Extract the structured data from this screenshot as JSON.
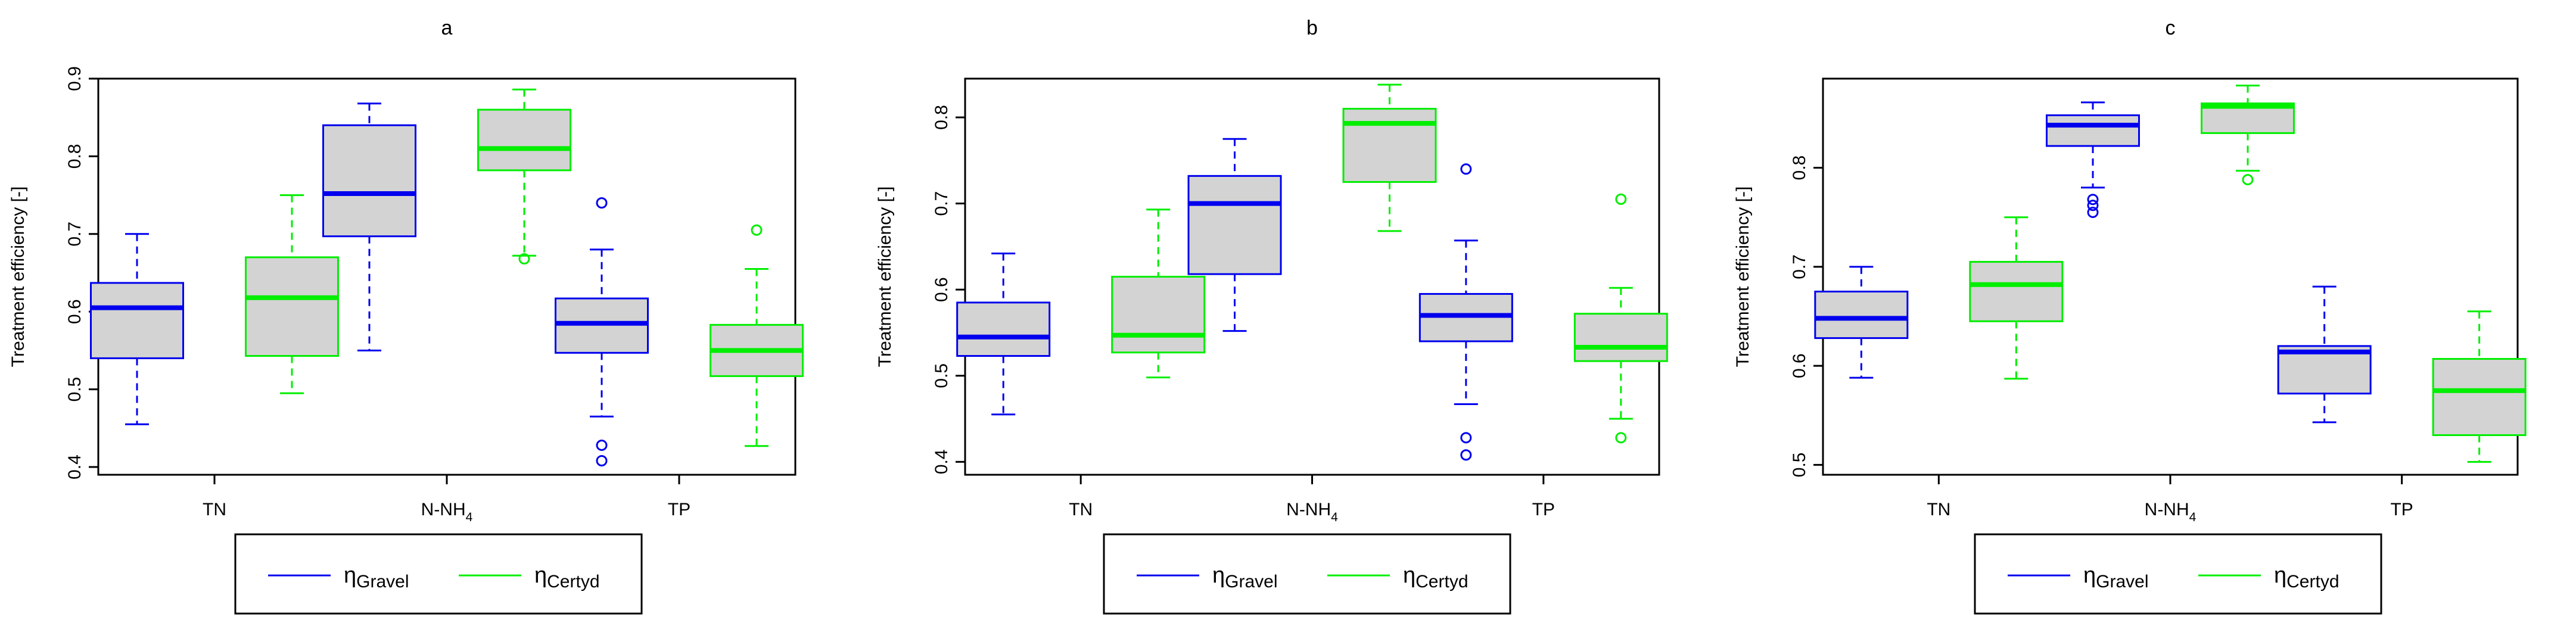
{
  "figure": {
    "colors": {
      "gravel": "#0000ee",
      "certyd": "#00ee00",
      "box_fill": "#d3d3d3",
      "frame": "#000000"
    },
    "legend": {
      "symbol": "η",
      "entries": [
        {
          "name": "Gravel",
          "color": "#0000ee"
        },
        {
          "name": "Certyd",
          "color": "#00ee00"
        }
      ]
    }
  },
  "chart_data": [
    {
      "type": "box",
      "title": "a",
      "xlabel": "",
      "ylabel": "Treatment efficiency [-]",
      "ylim": [
        0.39,
        0.9
      ],
      "yticks": [
        "0.4",
        "0.5",
        "0.6",
        "0.7",
        "0.8",
        "0.9"
      ],
      "categories": [
        {
          "main": "TN",
          "sub": ""
        },
        {
          "main": "N-NH",
          "sub": "4"
        },
        {
          "main": "TP",
          "sub": ""
        }
      ],
      "series": [
        {
          "name": "Gravel",
          "color": "#0000ee",
          "boxes": [
            {
              "min": 0.455,
              "q1": 0.54,
              "median": 0.605,
              "q3": 0.637,
              "max": 0.7,
              "outliers": []
            },
            {
              "min": 0.55,
              "q1": 0.697,
              "median": 0.752,
              "q3": 0.84,
              "max": 0.868,
              "outliers": []
            },
            {
              "min": 0.465,
              "q1": 0.547,
              "median": 0.585,
              "q3": 0.617,
              "max": 0.68,
              "outliers": [
                0.74,
                0.428,
                0.408
              ]
            }
          ]
        },
        {
          "name": "Certyd",
          "color": "#00ee00",
          "boxes": [
            {
              "min": 0.495,
              "q1": 0.543,
              "median": 0.618,
              "q3": 0.67,
              "max": 0.75,
              "outliers": []
            },
            {
              "min": 0.672,
              "q1": 0.782,
              "median": 0.81,
              "q3": 0.86,
              "max": 0.886,
              "outliers": [
                0.668
              ]
            },
            {
              "min": 0.427,
              "q1": 0.517,
              "median": 0.55,
              "q3": 0.583,
              "max": 0.655,
              "outliers": [
                0.705
              ]
            }
          ]
        }
      ]
    },
    {
      "type": "box",
      "title": "b",
      "xlabel": "",
      "ylabel": "Treatment efficiency [-]",
      "ylim": [
        0.385,
        0.845
      ],
      "yticks": [
        "0.4",
        "0.5",
        "0.6",
        "0.7",
        "0.8"
      ],
      "categories": [
        {
          "main": "TN",
          "sub": ""
        },
        {
          "main": "N-NH",
          "sub": "4"
        },
        {
          "main": "TP",
          "sub": ""
        }
      ],
      "series": [
        {
          "name": "Gravel",
          "color": "#0000ee",
          "boxes": [
            {
              "min": 0.455,
              "q1": 0.523,
              "median": 0.545,
              "q3": 0.585,
              "max": 0.642,
              "outliers": []
            },
            {
              "min": 0.552,
              "q1": 0.618,
              "median": 0.7,
              "q3": 0.732,
              "max": 0.775,
              "outliers": []
            },
            {
              "min": 0.467,
              "q1": 0.54,
              "median": 0.57,
              "q3": 0.595,
              "max": 0.657,
              "outliers": [
                0.74,
                0.428,
                0.408
              ]
            }
          ]
        },
        {
          "name": "Certyd",
          "color": "#00ee00",
          "boxes": [
            {
              "min": 0.498,
              "q1": 0.527,
              "median": 0.547,
              "q3": 0.615,
              "max": 0.693,
              "outliers": []
            },
            {
              "min": 0.668,
              "q1": 0.725,
              "median": 0.793,
              "q3": 0.81,
              "max": 0.838,
              "outliers": []
            },
            {
              "min": 0.45,
              "q1": 0.517,
              "median": 0.533,
              "q3": 0.572,
              "max": 0.602,
              "outliers": [
                0.705,
                0.428
              ]
            }
          ]
        }
      ]
    },
    {
      "type": "box",
      "title": "c",
      "xlabel": "",
      "ylabel": "Treatment efficiency [-]",
      "ylim": [
        0.49,
        0.89
      ],
      "yticks": [
        "0.5",
        "0.6",
        "0.7",
        "0.8"
      ],
      "categories": [
        {
          "main": "TN",
          "sub": ""
        },
        {
          "main": "N-NH",
          "sub": "4"
        },
        {
          "main": "TP",
          "sub": ""
        }
      ],
      "series": [
        {
          "name": "Gravel",
          "color": "#0000ee",
          "boxes": [
            {
              "min": 0.588,
              "q1": 0.628,
              "median": 0.648,
              "q3": 0.675,
              "max": 0.7,
              "outliers": []
            },
            {
              "min": 0.78,
              "q1": 0.822,
              "median": 0.843,
              "q3": 0.853,
              "max": 0.866,
              "outliers": [
                0.768,
                0.762,
                0.755
              ]
            },
            {
              "min": 0.543,
              "q1": 0.572,
              "median": 0.614,
              "q3": 0.62,
              "max": 0.68,
              "outliers": []
            }
          ]
        },
        {
          "name": "Certyd",
          "color": "#00ee00",
          "boxes": [
            {
              "min": 0.587,
              "q1": 0.645,
              "median": 0.682,
              "q3": 0.705,
              "max": 0.75,
              "outliers": []
            },
            {
              "min": 0.797,
              "q1": 0.835,
              "median": 0.862,
              "q3": 0.865,
              "max": 0.883,
              "outliers": [
                0.788
              ]
            },
            {
              "min": 0.503,
              "q1": 0.53,
              "median": 0.575,
              "q3": 0.607,
              "max": 0.655,
              "outliers": []
            }
          ]
        }
      ]
    }
  ]
}
